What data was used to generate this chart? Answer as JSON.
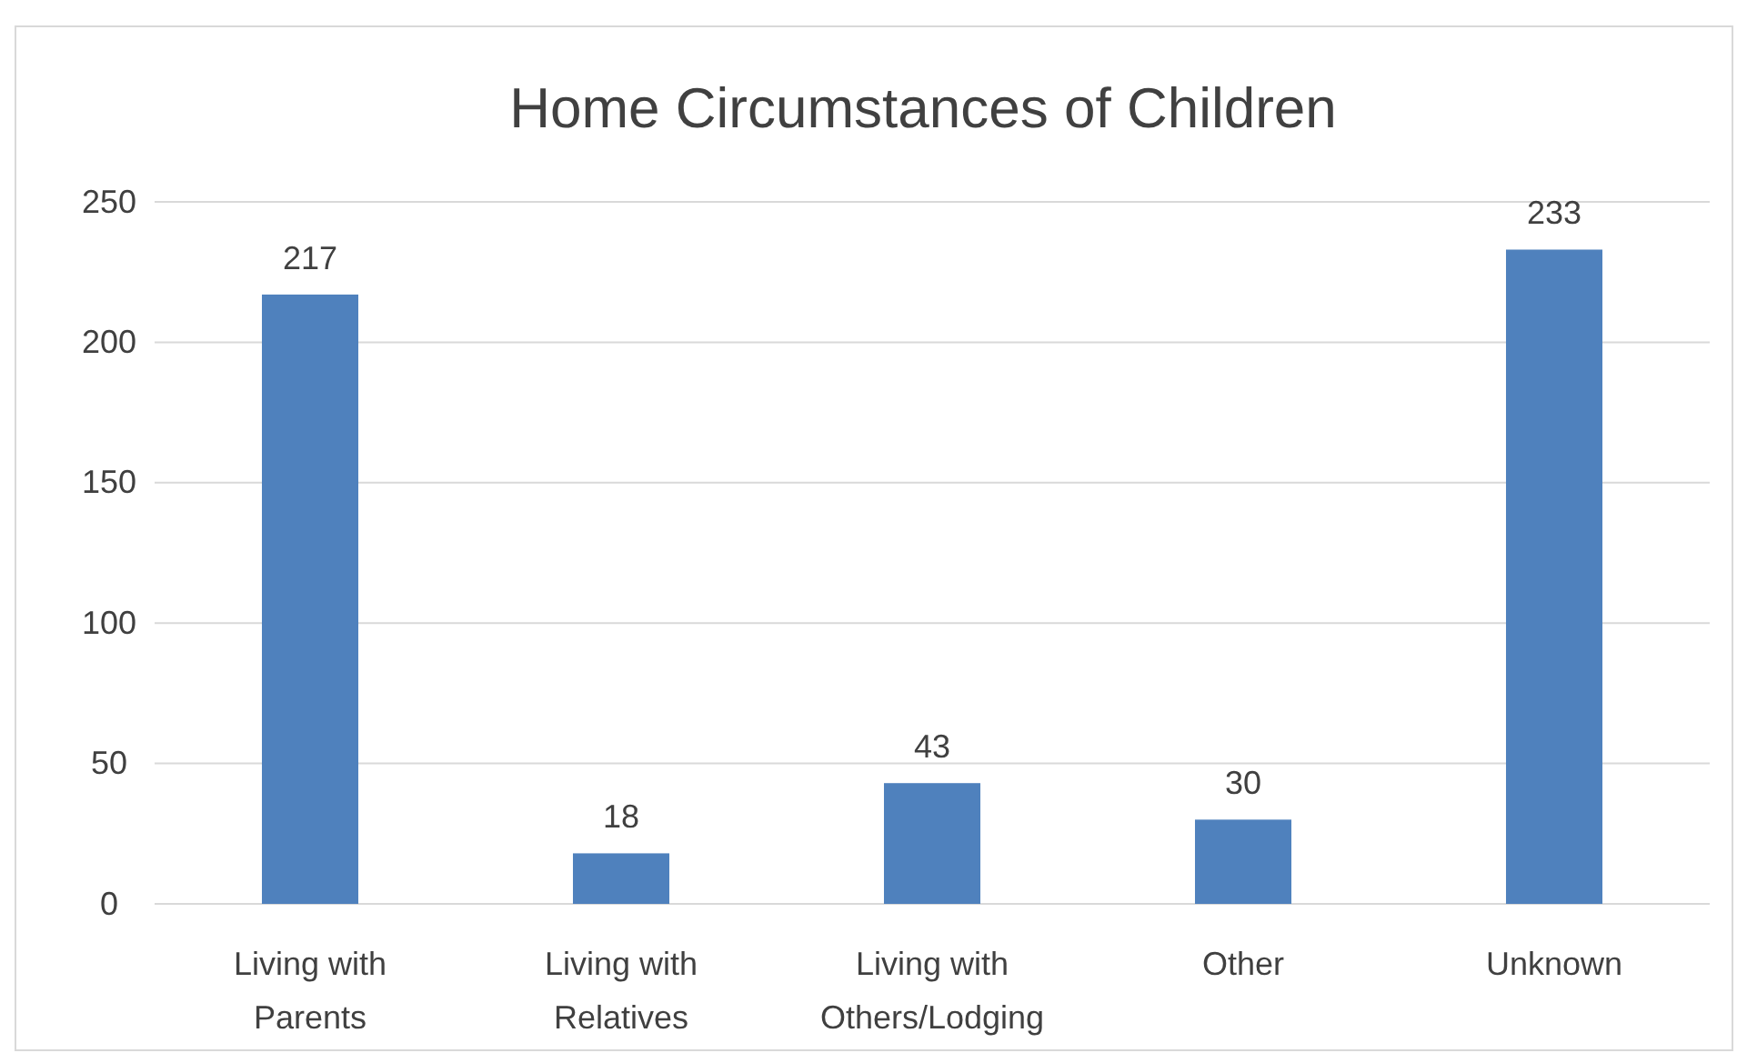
{
  "chart_data": {
    "type": "bar",
    "title": "Home Circumstances of Children",
    "categories": [
      "Living with Parents",
      "Living with Relatives",
      "Living with Others/Lodging",
      "Other",
      "Unknown"
    ],
    "values": [
      217,
      18,
      43,
      30,
      233
    ],
    "color": "#4f81bd",
    "ylim": [
      0,
      250
    ],
    "yticks": [
      0,
      50,
      100,
      150,
      200,
      250
    ],
    "grid": "y",
    "data_labels": true
  }
}
